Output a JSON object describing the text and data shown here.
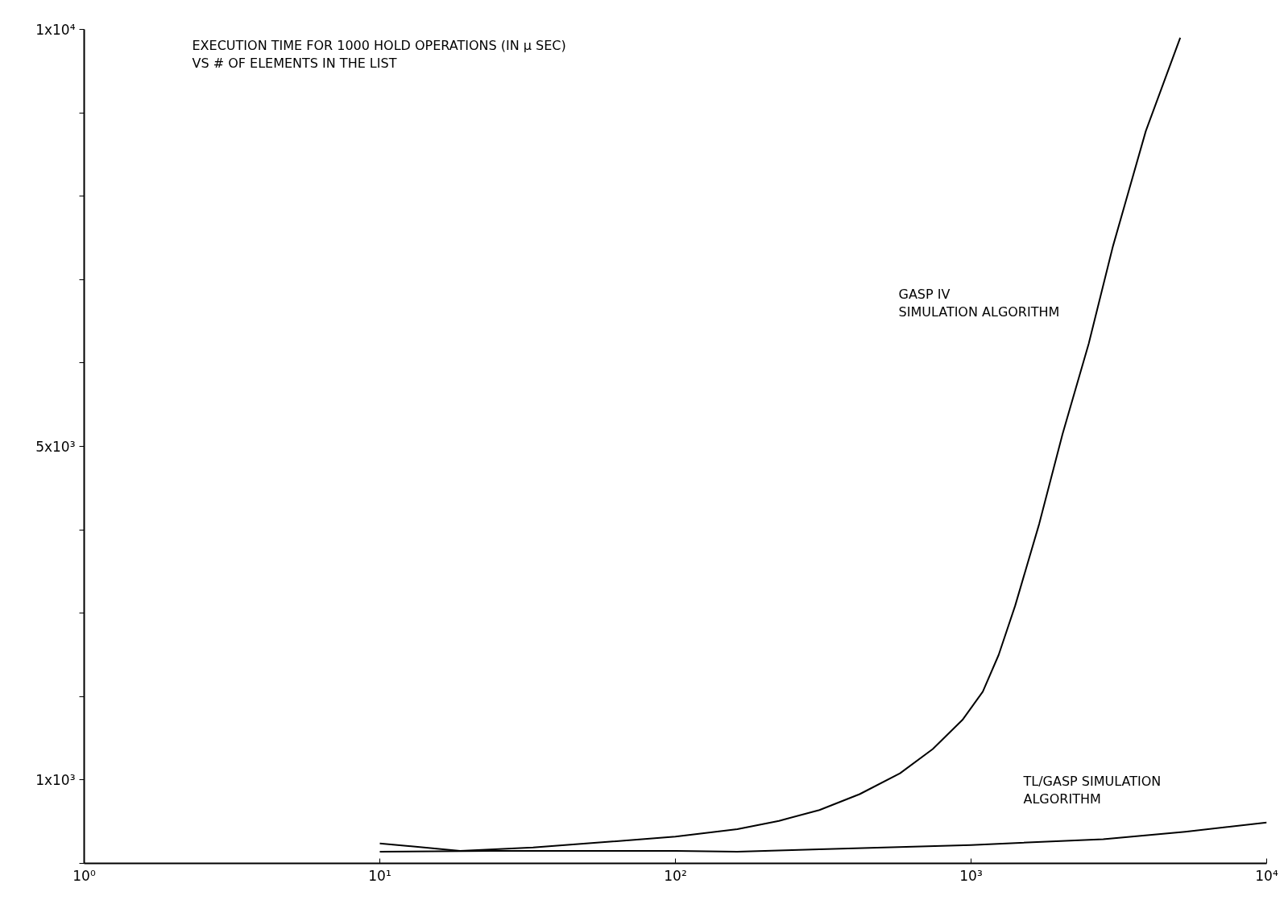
{
  "chart_data": {
    "type": "line",
    "title": "EXECUTION TIME FOR 1000 HOLD OPERATIONS (IN μ SEC)\nVS # OF ELEMENTS IN THE LIST",
    "log": "x",
    "grid": false,
    "xlim": [
      1,
      10000
    ],
    "ylim": [
      0,
      10000
    ],
    "xticks": [
      {
        "value": 1,
        "label": "10⁰"
      },
      {
        "value": 10,
        "label": "10¹"
      },
      {
        "value": 100,
        "label": "10²"
      },
      {
        "value": 1000,
        "label": "10³"
      },
      {
        "value": 10000,
        "label": "10⁴"
      }
    ],
    "yticks": [
      {
        "value": 0,
        "label": null
      },
      {
        "value": 1000,
        "label": "1x10³"
      },
      {
        "value": 2000,
        "label": null
      },
      {
        "value": 3000,
        "label": null
      },
      {
        "value": 4000,
        "label": null
      },
      {
        "value": 5000,
        "label": "5x10³"
      },
      {
        "value": 6000,
        "label": null
      },
      {
        "value": 7000,
        "label": null
      },
      {
        "value": 8000,
        "label": null
      },
      {
        "value": 9000,
        "label": null
      },
      {
        "value": 10000,
        "label": "1x10⁴"
      }
    ],
    "series": [
      {
        "color": "#000000",
        "x": [
          10,
          18.7,
          33,
          100,
          162,
          224,
          307,
          420,
          575,
          742,
          935,
          1096,
          1240,
          1410,
          1700,
          2040,
          2500,
          3020,
          3900,
          5100
        ],
        "values": [
          240,
          150,
          190,
          320,
          410,
          510,
          640,
          830,
          1080,
          1370,
          1720,
          2060,
          2500,
          3090,
          4070,
          5150,
          6230,
          7400,
          8780,
          9900
        ]
      },
      {
        "color": "#000000",
        "x": [
          10,
          24,
          100,
          162,
          307,
          1000,
          2800,
          5300,
          10000
        ],
        "values": [
          140,
          150,
          150,
          140,
          170,
          220,
          290,
          380,
          490
        ]
      }
    ],
    "annotations": [
      "GASP IV\nSIMULATION ALGORITHM",
      "TL/GASP SIMULATION\nALGORITHM"
    ]
  }
}
